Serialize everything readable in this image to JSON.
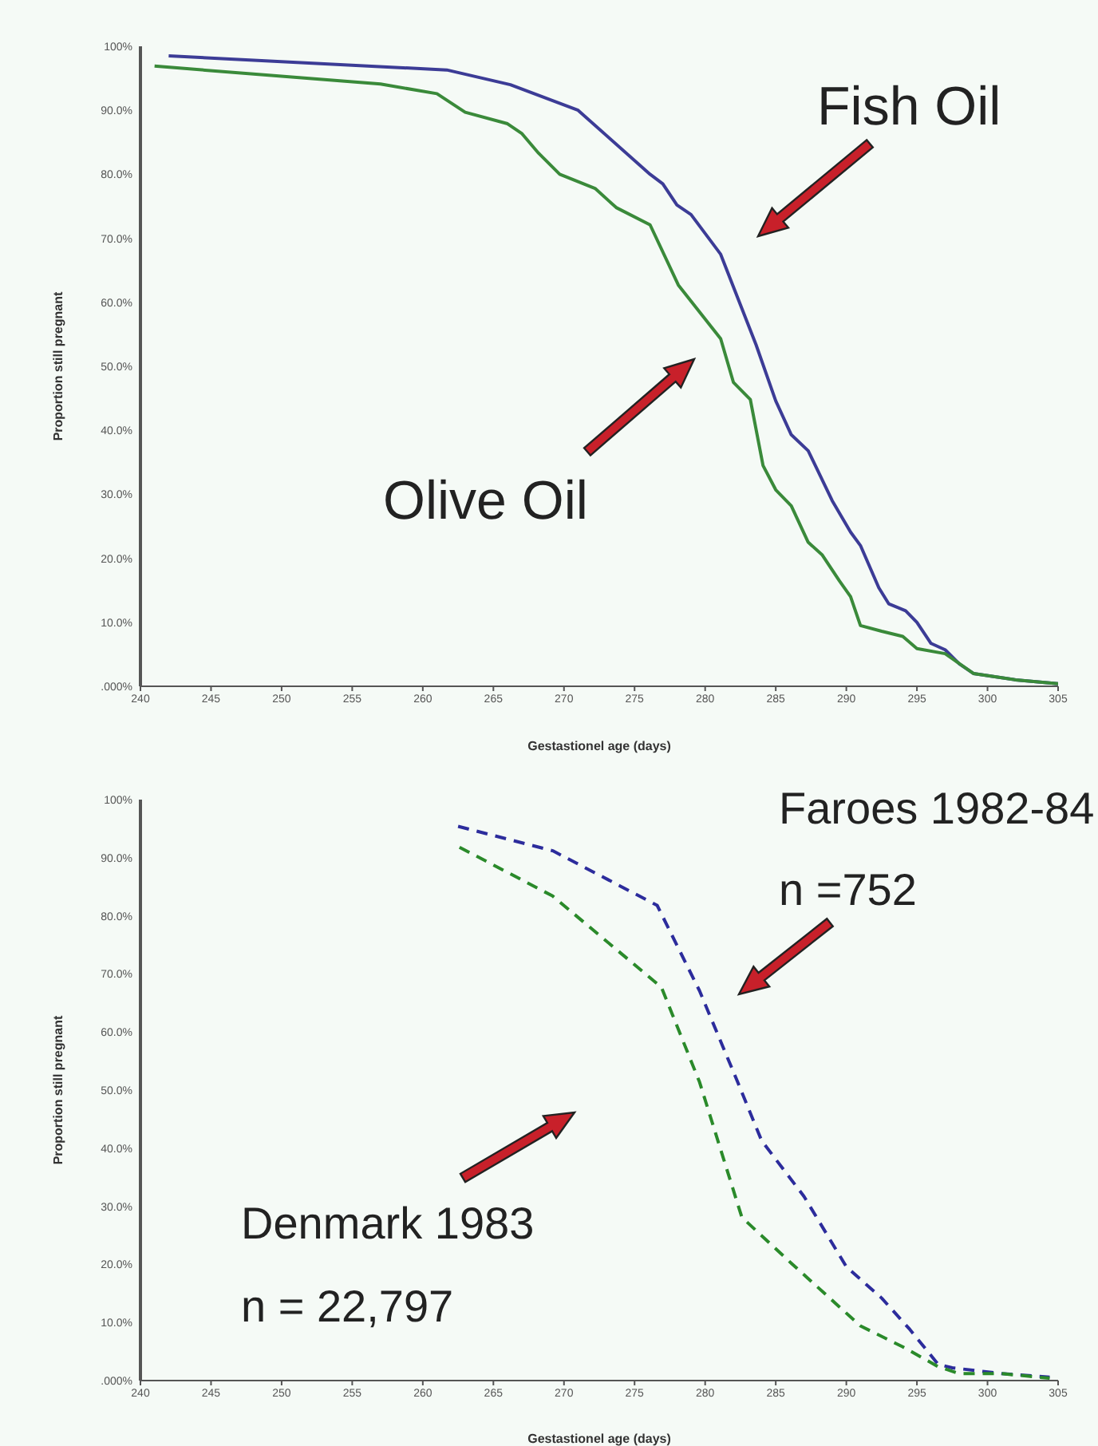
{
  "chart_data": [
    {
      "type": "line",
      "xlabel": "Gestastionel age (days)",
      "ylabel": "Proportion still pregnant",
      "xlim": [
        240,
        305
      ],
      "xticks": [
        240,
        245,
        250,
        255,
        260,
        265,
        270,
        275,
        280,
        285,
        290,
        295,
        300,
        305
      ],
      "ylim": [
        0,
        100
      ],
      "yticks": [
        {
          "value": 0,
          "label": ".000%"
        },
        {
          "value": 10,
          "label": "10.0%"
        },
        {
          "value": 20,
          "label": "20.0%"
        },
        {
          "value": 30,
          "label": "30.0%"
        },
        {
          "value": 40,
          "label": "40.0%"
        },
        {
          "value": 50,
          "label": "50.0%"
        },
        {
          "value": 60,
          "label": "60.0%"
        },
        {
          "value": 70,
          "label": "70.0%"
        },
        {
          "value": 80,
          "label": "80.0%"
        },
        {
          "value": 90,
          "label": "90.0%"
        },
        {
          "value": 100,
          "label": "100%"
        }
      ],
      "line_style": "solid",
      "annotations": [
        "Fish Oil",
        "Olive Oil"
      ],
      "series": [
        {
          "color": "#3c3c96",
          "x": [
            242,
            261.7,
            266.2,
            271,
            276.1,
            277,
            278,
            279,
            281.1,
            283.6,
            285,
            286.1,
            287.3,
            289,
            290.3,
            291,
            292.3,
            293,
            294.2,
            295,
            296,
            297,
            298,
            299,
            302,
            305
          ],
          "values": [
            98.5,
            96.3,
            94,
            90,
            80,
            78.5,
            75.2,
            73.7,
            67.5,
            53.4,
            44.6,
            39.3,
            36.8,
            29,
            24.1,
            22,
            15.4,
            12.9,
            11.8,
            10,
            6.7,
            5.7,
            3.5,
            2,
            1,
            0.4
          ]
        },
        {
          "color": "#3a8a3a",
          "x": [
            241,
            257,
            261,
            263,
            266,
            267,
            268.2,
            269.7,
            272.2,
            273.7,
            276.1,
            278.1,
            281.1,
            282,
            283.2,
            284.1,
            285,
            286.1,
            287.3,
            288.3,
            289.5,
            290.3,
            291,
            292.5,
            294,
            295,
            297,
            299,
            302,
            305
          ],
          "values": [
            96.9,
            94.1,
            92.6,
            89.7,
            87.9,
            86.4,
            83.3,
            80,
            77.8,
            74.8,
            72.1,
            62.7,
            54.3,
            47.5,
            44.8,
            34.5,
            30.7,
            28.2,
            22.5,
            20.5,
            16.5,
            14,
            9.5,
            8.6,
            7.8,
            5.9,
            5.1,
            2,
            1,
            0.4
          ]
        }
      ]
    },
    {
      "type": "line",
      "xlabel": "Gestastionel age (days)",
      "ylabel": "Proportion still pregnant",
      "xlim": [
        240,
        305
      ],
      "xticks": [
        240,
        245,
        250,
        255,
        260,
        265,
        270,
        275,
        280,
        285,
        290,
        295,
        300,
        305
      ],
      "ylim": [
        0,
        100
      ],
      "yticks": [
        {
          "value": 0,
          "label": ".000%"
        },
        {
          "value": 10,
          "label": "10.0%"
        },
        {
          "value": 20,
          "label": "20.0%"
        },
        {
          "value": 30,
          "label": "30.0%"
        },
        {
          "value": 40,
          "label": "40.0%"
        },
        {
          "value": 50,
          "label": "50.0%"
        },
        {
          "value": 60,
          "label": "60.0%"
        },
        {
          "value": 70,
          "label": "70.0%"
        },
        {
          "value": 80,
          "label": "80.0%"
        },
        {
          "value": 90,
          "label": "90.0%"
        },
        {
          "value": 100,
          "label": "100%"
        }
      ],
      "line_style": "dashed",
      "annotations": [
        "Faroes 1982-84",
        "n =752",
        "Denmark 1983",
        "n = 22,797"
      ],
      "series": [
        {
          "color": "#2c2c9c",
          "x": [
            262.5,
            269.2,
            276.6,
            279.6,
            282.3,
            284,
            287,
            290,
            292.5,
            294.5,
            296.5,
            297.5,
            301,
            304.4
          ],
          "values": [
            95.4,
            91.2,
            81.8,
            67.1,
            51.4,
            41.3,
            31.7,
            19.6,
            14.2,
            8.8,
            2.8,
            2.2,
            1.2,
            0.6
          ]
        },
        {
          "color": "#2a8a2a",
          "x": [
            262.6,
            269.2,
            276.9,
            279.6,
            282.6,
            286.1,
            291,
            294,
            296.5,
            298,
            301,
            304.4
          ],
          "values": [
            91.8,
            83.4,
            67.7,
            51.4,
            28.1,
            20.2,
            9.4,
            5.8,
            2.4,
            1.2,
            1.2,
            0.4
          ]
        }
      ]
    }
  ]
}
